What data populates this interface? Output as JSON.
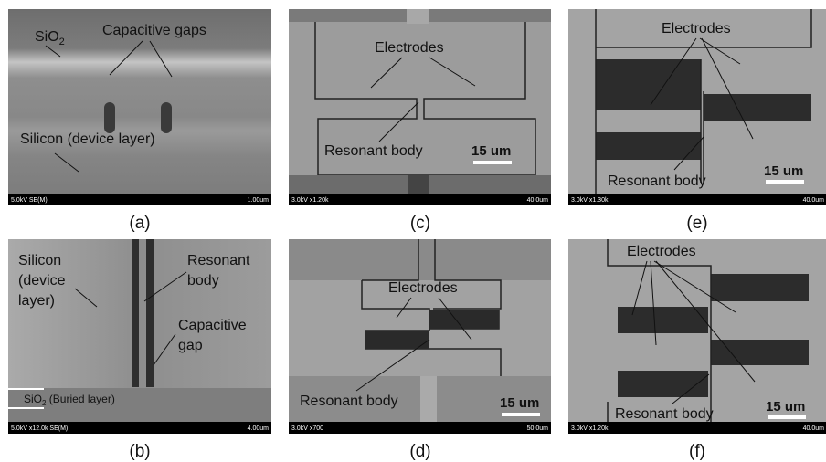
{
  "panels": [
    {
      "label": "(a)",
      "footer_left": "5.0kV SE(M)",
      "footer_right": "1.00um",
      "annotations": {
        "sio2": "SiO",
        "sio2_sub": "2",
        "gaps": "Capacitive gaps",
        "silicon": "Silicon (device layer)"
      }
    },
    {
      "label": "(b)",
      "footer_left": "5.0kV x12.0k SE(M)",
      "footer_right": "4.00um",
      "annotations": {
        "silicon": [
          "Silicon",
          "(device",
          "layer)"
        ],
        "body": [
          "Resonant",
          "body"
        ],
        "gap": [
          "Capacitive",
          "gap"
        ],
        "sio2": "SiO",
        "sio2_sub": "2",
        "sio2_rest": " (Buried layer)"
      }
    },
    {
      "label": "(c)",
      "footer_left": "3.0kV x1.20k",
      "footer_right": "40.0um",
      "annotations": {
        "electrodes": "Electrodes",
        "body": "Resonant body",
        "scale": "15 um"
      }
    },
    {
      "label": "(d)",
      "footer_left": "3.0kV x700",
      "footer_right": "50.0um",
      "annotations": {
        "electrodes": "Electrodes",
        "body": "Resonant body",
        "scale": "15 um"
      }
    },
    {
      "label": "(e)",
      "footer_left": "3.0kV x1.30k",
      "footer_right": "40.0um",
      "annotations": {
        "electrodes": "Electrodes",
        "body": "Resonant body",
        "scale": "15 um"
      }
    },
    {
      "label": "(f)",
      "footer_left": "3.0kV x1.20k",
      "footer_right": "40.0um",
      "annotations": {
        "electrodes": "Electrodes",
        "body": "Resonant body",
        "scale": "15 um"
      }
    }
  ]
}
